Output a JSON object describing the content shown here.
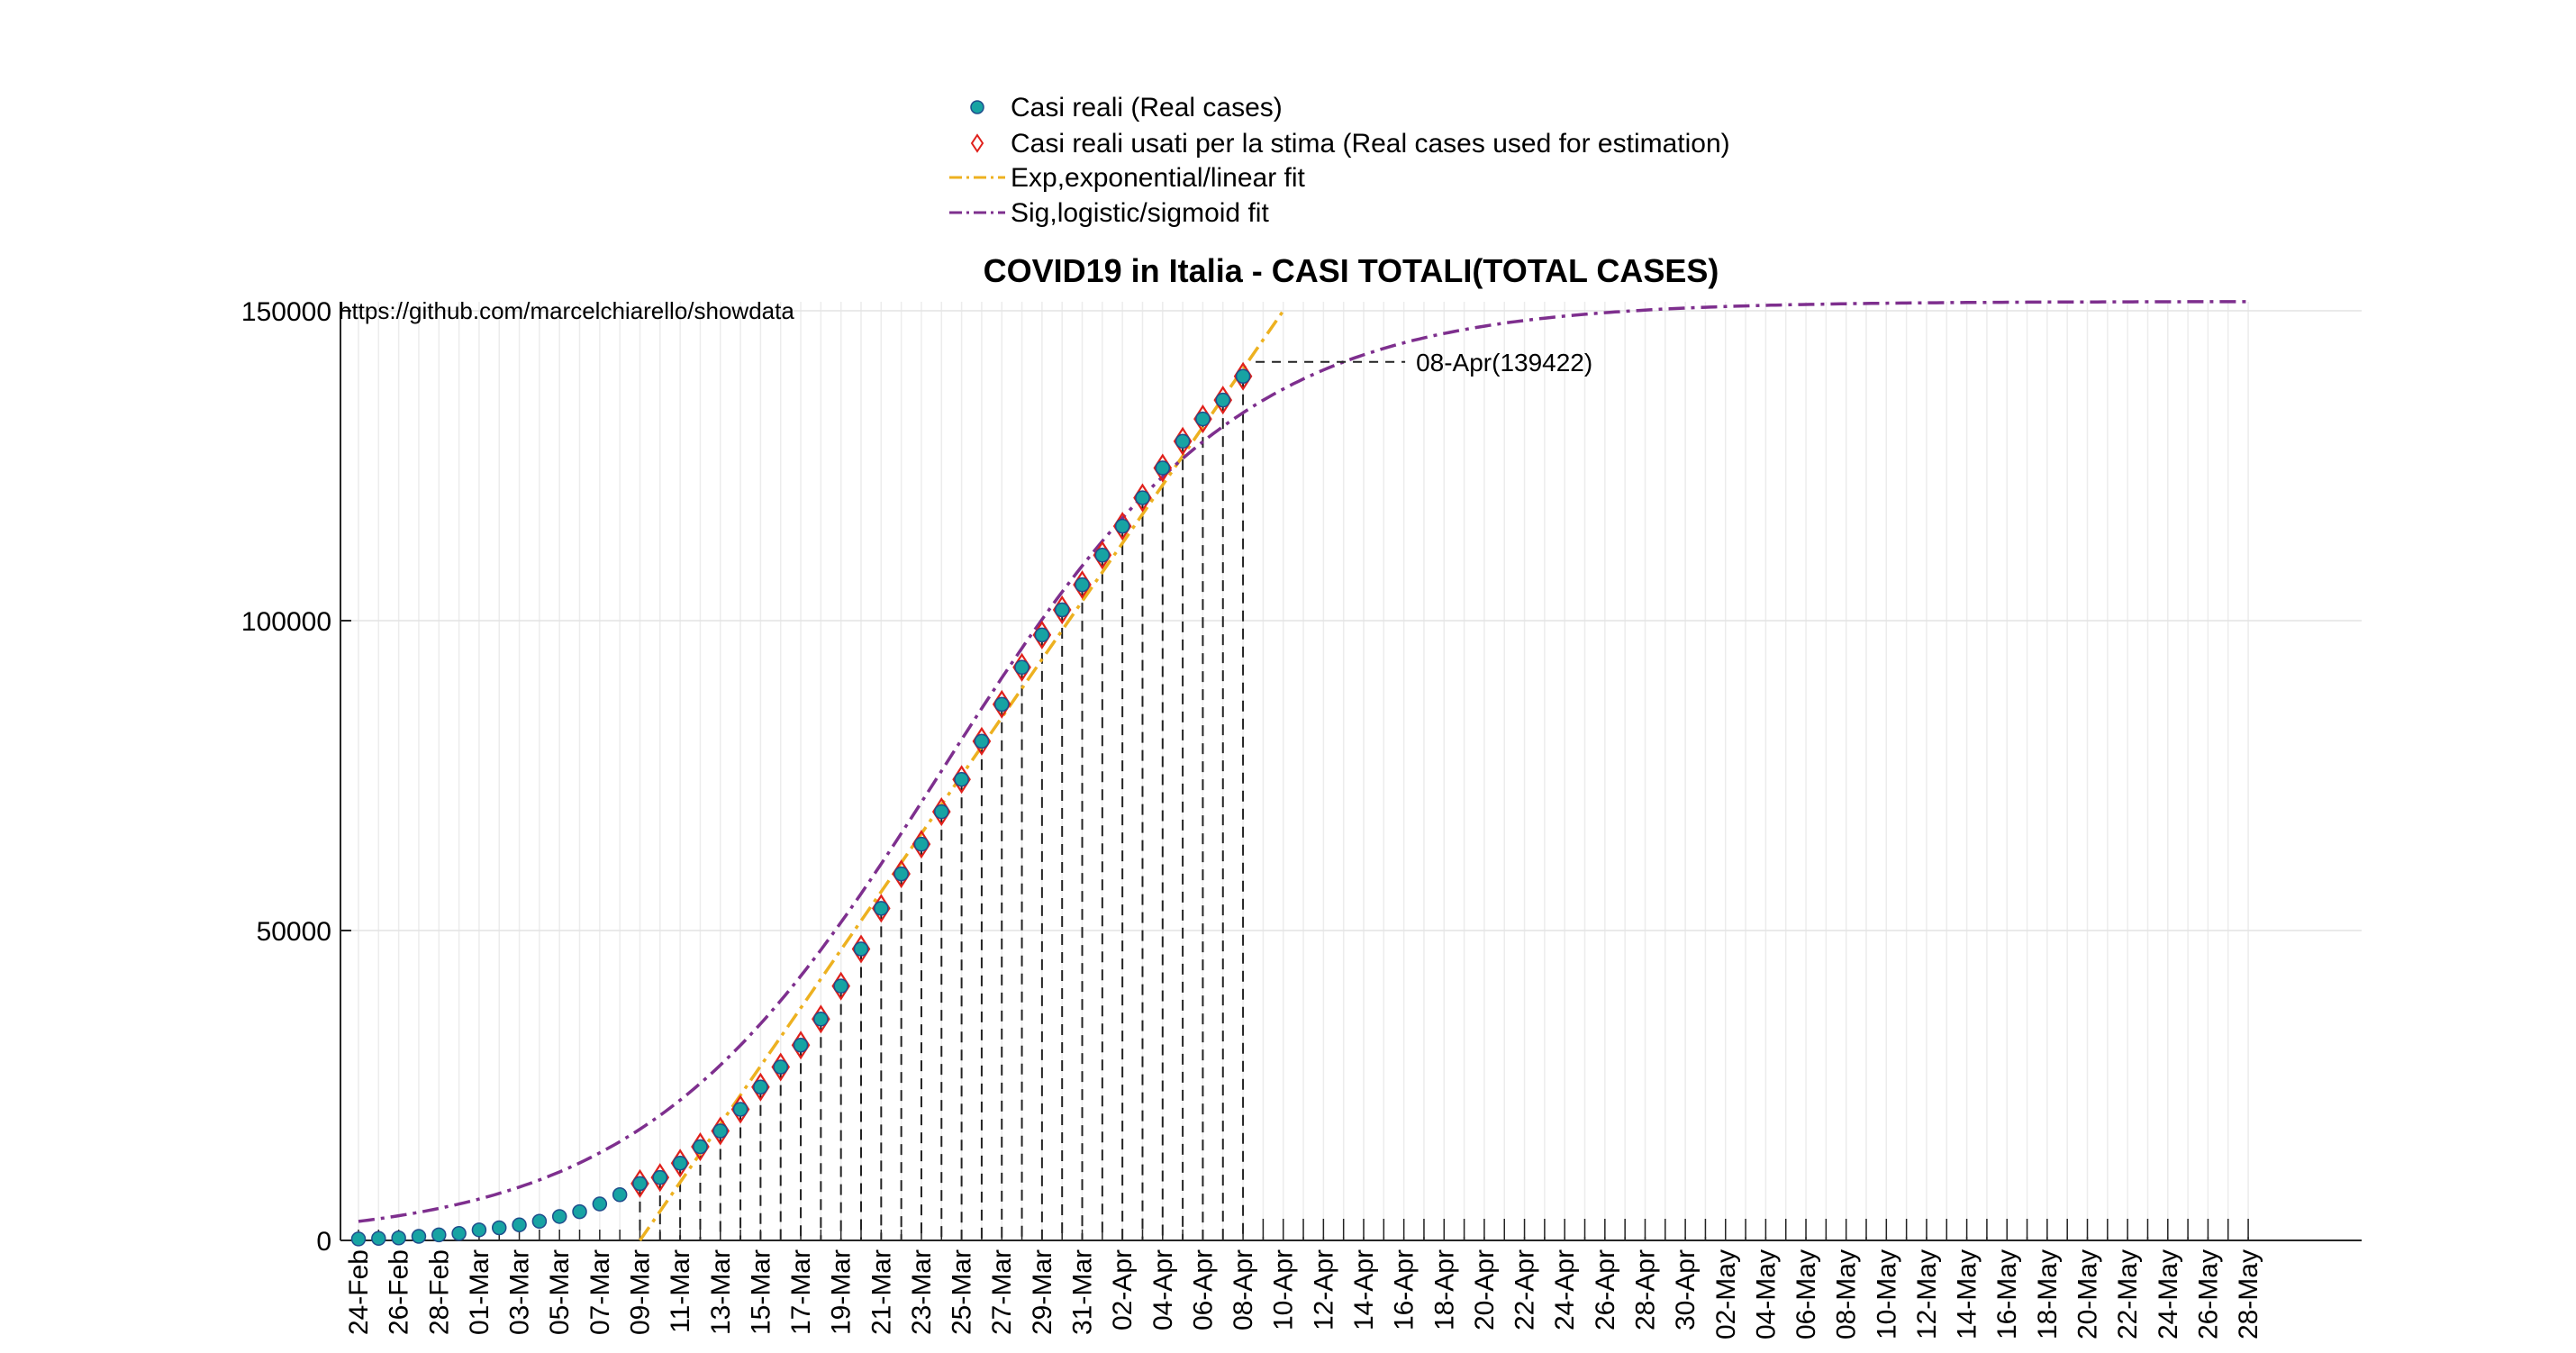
{
  "chart_data": {
    "type": "line",
    "title": "COVID19 in Italia - CASI TOTALI(TOTAL CASES)",
    "xlabel": "",
    "ylabel": "",
    "source_note": "https://github.com/marcelchiarello/showdata",
    "ylim": [
      0,
      150000
    ],
    "yticks": [
      0,
      50000,
      100000,
      150000
    ],
    "ytick_labels": [
      "0",
      "50000",
      "100000",
      "150000"
    ],
    "x_start_date": "24-Feb",
    "x_tick_labels": [
      "24-Feb",
      "26-Feb",
      "28-Feb",
      "01-Mar",
      "03-Mar",
      "05-Mar",
      "07-Mar",
      "09-Mar",
      "11-Mar",
      "13-Mar",
      "15-Mar",
      "17-Mar",
      "19-Mar",
      "21-Mar",
      "23-Mar",
      "25-Mar",
      "27-Mar",
      "29-Mar",
      "31-Mar",
      "02-Apr",
      "04-Apr",
      "06-Apr",
      "08-Apr",
      "10-Apr",
      "12-Apr",
      "14-Apr",
      "16-Apr",
      "18-Apr",
      "20-Apr",
      "22-Apr",
      "24-Apr",
      "26-Apr",
      "28-Apr",
      "30-Apr",
      "02-May",
      "04-May",
      "06-May",
      "08-May",
      "10-May",
      "12-May",
      "14-May",
      "16-May",
      "18-May",
      "20-May",
      "22-May",
      "24-May",
      "26-May",
      "28-May"
    ],
    "grid": true,
    "legend_position": "top-center",
    "series": [
      {
        "name": "Casi reali (Real cases)",
        "kind": "marker-circle",
        "color": "#17a3a3",
        "edge": "#1f4e8c",
        "dates": [
          "24-Feb",
          "25-Feb",
          "26-Feb",
          "27-Feb",
          "28-Feb",
          "29-Feb",
          "01-Mar",
          "02-Mar",
          "03-Mar",
          "04-Mar",
          "05-Mar",
          "06-Mar",
          "07-Mar",
          "08-Mar",
          "09-Mar",
          "10-Mar",
          "11-Mar",
          "12-Mar",
          "13-Mar",
          "14-Mar",
          "15-Mar",
          "16-Mar",
          "17-Mar",
          "18-Mar",
          "19-Mar",
          "20-Mar",
          "21-Mar",
          "22-Mar",
          "23-Mar",
          "24-Mar",
          "25-Mar",
          "26-Mar",
          "27-Mar",
          "28-Mar",
          "29-Mar",
          "30-Mar",
          "31-Mar",
          "01-Apr",
          "02-Apr",
          "03-Apr",
          "04-Apr",
          "05-Apr",
          "06-Apr",
          "07-Apr",
          "08-Apr"
        ],
        "values": [
          229,
          322,
          400,
          650,
          888,
          1128,
          1694,
          2036,
          2502,
          3089,
          3858,
          4636,
          5883,
          7375,
          9172,
          10149,
          12462,
          15113,
          17660,
          21157,
          24747,
          27980,
          31506,
          35713,
          41035,
          47021,
          53578,
          59138,
          63927,
          69176,
          74386,
          80539,
          86498,
          92472,
          97689,
          101739,
          105792,
          110574,
          115242,
          119827,
          124632,
          128948,
          132547,
          135586,
          139422
        ]
      },
      {
        "name": "Casi reali usati per la stima (Real cases used for estimation)",
        "kind": "marker-diamond",
        "color": "#e0201b",
        "start_date": "09-Mar",
        "end_date": "08-Apr"
      },
      {
        "name": "Exp,exponential/linear fit",
        "kind": "line-dashdot",
        "color": "#edb120",
        "model": "linear",
        "points": [
          {
            "x": "09-Mar",
            "y": 0
          },
          {
            "x": "10-Apr",
            "y": 150000
          }
        ]
      },
      {
        "name": "Sig,logistic/sigmoid fit",
        "kind": "line-dashdot",
        "color": "#7e2f8e",
        "model": "logistic",
        "K": 151500,
        "midpoint": "24-Mar",
        "growth_rate_per_day": 0.1338,
        "x_end": "28-May"
      }
    ],
    "annotation": {
      "text": "08-Apr(139422)",
      "date": "08-Apr",
      "value": 139422
    }
  }
}
